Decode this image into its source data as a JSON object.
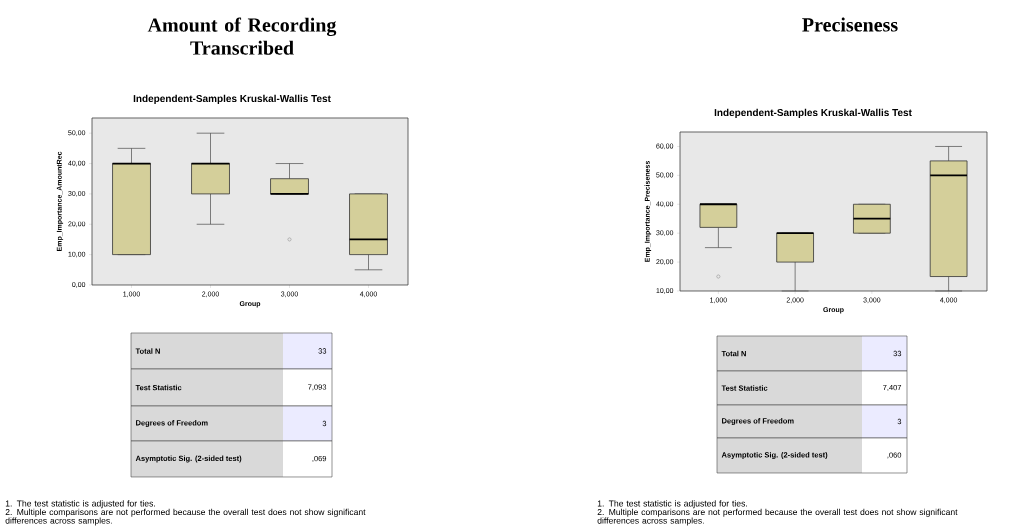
{
  "chart_data": [
    {
      "type": "box",
      "title": "Amount of Recording Transcribed",
      "subtitle": "Independent-Samples Kruskal-Wallis Test",
      "xlabel": "Group",
      "ylabel": "Emp_Importance_AmountRec",
      "categories": [
        "1,000",
        "2,000",
        "3,000",
        "4,000"
      ],
      "series": [
        {
          "color": "#d4cf9a",
          "boxes": [
            {
              "low": 10,
              "q1": 10,
              "median": 40,
              "q3": 40,
              "high": 45
            },
            {
              "low": 20,
              "q1": 30,
              "median": 40,
              "q3": 40,
              "high": 50
            },
            {
              "low": 30,
              "q1": 30,
              "median": 30,
              "q3": 35,
              "high": 40,
              "outliers": [
                15
              ]
            },
            {
              "low": 5,
              "q1": 10,
              "median": 15,
              "q3": 30,
              "high": 30
            }
          ]
        }
      ],
      "ylim": [
        0,
        55
      ],
      "yticks": [
        {
          "value": 0,
          "label": "0,00"
        },
        {
          "value": 10,
          "label": "10,00"
        },
        {
          "value": 20,
          "label": "20,00"
        },
        {
          "value": 30,
          "label": "30,00"
        },
        {
          "value": 40,
          "label": "40,00"
        },
        {
          "value": 50,
          "label": "50,00"
        }
      ],
      "annotations": [
        "Total N",
        "33",
        "Test Statistic",
        "7,093",
        "Degrees of Freedom",
        "3",
        "Asymptotic Sig. (2-sided test)",
        ",069",
        "1.  The test statistic is adjusted for ties.",
        "2.  Multiple comparisons are not performed because the overall test does not show significant differences across samples."
      ]
    },
    {
      "type": "box",
      "title": "Preciseness",
      "subtitle": "Independent-Samples Kruskal-Wallis Test",
      "xlabel": "Group",
      "ylabel": "Emp_Importance_Preciseness",
      "categories": [
        "1,000",
        "2,000",
        "3,000",
        "4,000"
      ],
      "series": [
        {
          "color": "#d4cf9a",
          "boxes": [
            {
              "low": 25,
              "q1": 32,
              "median": 40,
              "q3": 40,
              "high": 40,
              "outliers": [
                15
              ]
            },
            {
              "low": 10,
              "q1": 20,
              "median": 30,
              "q3": 30,
              "high": 30
            },
            {
              "low": 30,
              "q1": 30,
              "median": 35,
              "q3": 40,
              "high": 40
            },
            {
              "low": 10,
              "q1": 15,
              "median": 50,
              "q3": 55,
              "high": 60
            }
          ]
        }
      ],
      "ylim": [
        10,
        65
      ],
      "yticks": [
        {
          "value": 10,
          "label": "10,00"
        },
        {
          "value": 20,
          "label": "20,00"
        },
        {
          "value": 30,
          "label": "30,00"
        },
        {
          "value": 40,
          "label": "40,00"
        },
        {
          "value": 50,
          "label": "50,00"
        },
        {
          "value": 60,
          "label": "60,00"
        }
      ],
      "annotations": [
        "Total N",
        "33",
        "Test Statistic",
        "7,407",
        "Degrees of Freedom",
        "3",
        "Asymptotic Sig. (2-sided test)",
        ",060",
        "1.  The test statistic is adjusted for ties.",
        "2.  Multiple comparisons are not performed because the overall test does not show significant differences across samples."
      ]
    }
  ]
}
